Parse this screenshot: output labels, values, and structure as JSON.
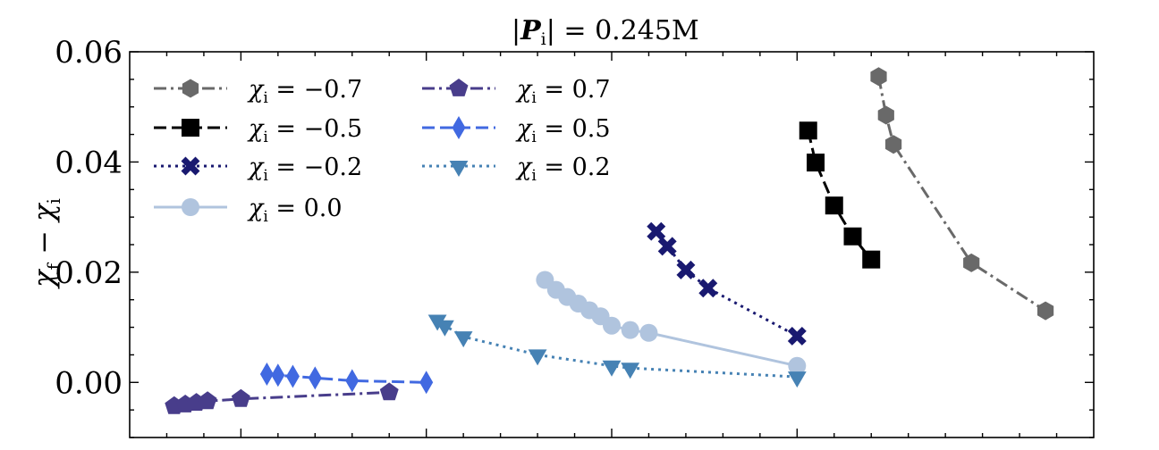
{
  "chart_data": {
    "type": "scatter",
    "title": "|P_i| = 0.245M",
    "title_parts": {
      "lhs": "|",
      "bold": "P",
      "sub": "i",
      "rhs": "| = 0.245M"
    },
    "xlabel": "",
    "ylabel": "χf − χi",
    "ylabel_parts": {
      "a": "χ",
      "a_sub": "f",
      "op": " − ",
      "b": "χ",
      "b_sub": "i"
    },
    "xlim": [
      0,
      26
    ],
    "ylim": [
      -0.01,
      0.06
    ],
    "yticks": [
      0.0,
      0.02,
      0.04,
      0.06
    ],
    "ytick_labels": [
      "0.00",
      "0.02",
      "0.04",
      "0.06"
    ],
    "xticks_major": [
      3,
      8,
      13,
      18
    ],
    "grid": false,
    "legend": {
      "placement": "top-left",
      "columns": 2
    },
    "series": [
      {
        "name": "χi = −0.7",
        "label_value": "−0.7",
        "color": "#696969",
        "marker": "hexagon",
        "line": "dashdot",
        "x": [
          20.2,
          20.4,
          20.6,
          22.7,
          24.7
        ],
        "y": [
          0.0555,
          0.0485,
          0.0432,
          0.0217,
          0.013
        ]
      },
      {
        "name": "χi = −0.5",
        "label_value": "−0.5",
        "color": "#000000",
        "marker": "square",
        "line": "dashed",
        "x": [
          18.3,
          18.5,
          19.0,
          19.5,
          20.0
        ],
        "y": [
          0.0457,
          0.0399,
          0.0321,
          0.0265,
          0.0223
        ]
      },
      {
        "name": "χi = −0.2",
        "label_value": "−0.2",
        "color": "#191970",
        "marker": "x-filled",
        "line": "dotted",
        "x": [
          14.2,
          14.5,
          15.0,
          15.6,
          18.0
        ],
        "y": [
          0.0274,
          0.0247,
          0.0204,
          0.0171,
          0.0084
        ]
      },
      {
        "name": "χi = 0.0",
        "label_value": "0.0",
        "color": "#b0c4de",
        "marker": "circle",
        "line": "solid",
        "x": [
          11.2,
          11.5,
          11.8,
          12.1,
          12.4,
          12.7,
          13.0,
          13.5,
          14.0,
          18.0
        ],
        "y": [
          0.0186,
          0.0168,
          0.0155,
          0.0143,
          0.0131,
          0.012,
          0.0103,
          0.0095,
          0.009,
          0.003
        ]
      },
      {
        "name": "χi = 0.7",
        "label_value": "0.7",
        "color": "#483d8b",
        "marker": "pentagon",
        "line": "dashdot",
        "x": [
          1.2,
          1.5,
          1.8,
          2.1,
          3.0,
          7.0
        ],
        "y": [
          -0.0043,
          -0.004,
          -0.0037,
          -0.0034,
          -0.003,
          -0.0018
        ]
      },
      {
        "name": "χi = 0.5",
        "label_value": "0.5",
        "color": "#4169e1",
        "marker": "thin_diamond",
        "line": "dashed",
        "x": [
          3.7,
          4.0,
          4.4,
          5.0,
          6.0,
          8.0
        ],
        "y": [
          0.0015,
          0.0013,
          0.0011,
          0.0008,
          0.0003,
          0.0
        ]
      },
      {
        "name": "χi = 0.2",
        "label_value": "0.2",
        "color": "#4682b4",
        "marker": "triangle_down",
        "line": "dotted",
        "x": [
          8.3,
          8.5,
          9.0,
          11.0,
          13.0,
          13.5,
          18.0
        ],
        "y": [
          0.0113,
          0.0103,
          0.0083,
          0.005,
          0.003,
          0.0026,
          0.001
        ]
      }
    ]
  }
}
